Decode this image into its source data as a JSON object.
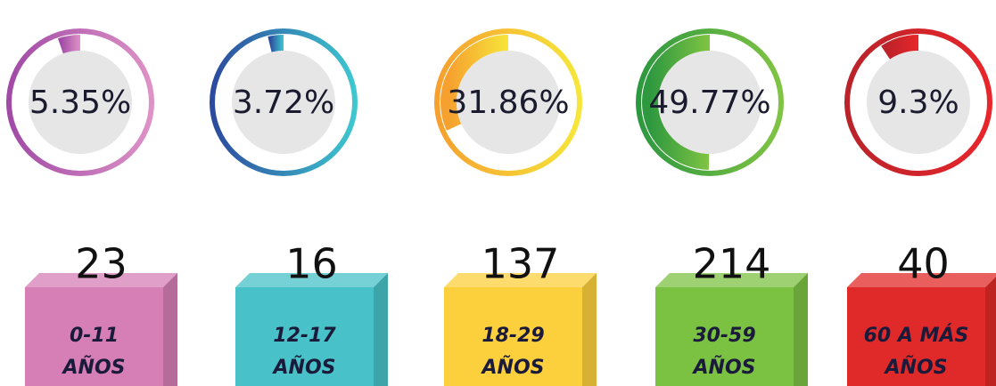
{
  "chart_data": {
    "type": "gauge",
    "categories": [
      [
        "0-11",
        "AÑOS"
      ],
      [
        "12-17",
        "AÑOS"
      ],
      [
        "18-29",
        "AÑOS"
      ],
      [
        "30-59",
        "AÑOS"
      ],
      [
        "60 A MÁS",
        "AÑOS"
      ]
    ],
    "values": [
      5.35,
      3.72,
      31.86,
      49.77,
      9.3
    ],
    "value_labels": [
      "5.35%",
      "3.72%",
      "31.86%",
      "49.77%",
      "9.3%"
    ],
    "counts": [
      23,
      16,
      137,
      214,
      40
    ],
    "colors": [
      "#d57fb6",
      "#48c2c8",
      "#fcd03c",
      "#7cc242",
      "#e02a29"
    ]
  }
}
